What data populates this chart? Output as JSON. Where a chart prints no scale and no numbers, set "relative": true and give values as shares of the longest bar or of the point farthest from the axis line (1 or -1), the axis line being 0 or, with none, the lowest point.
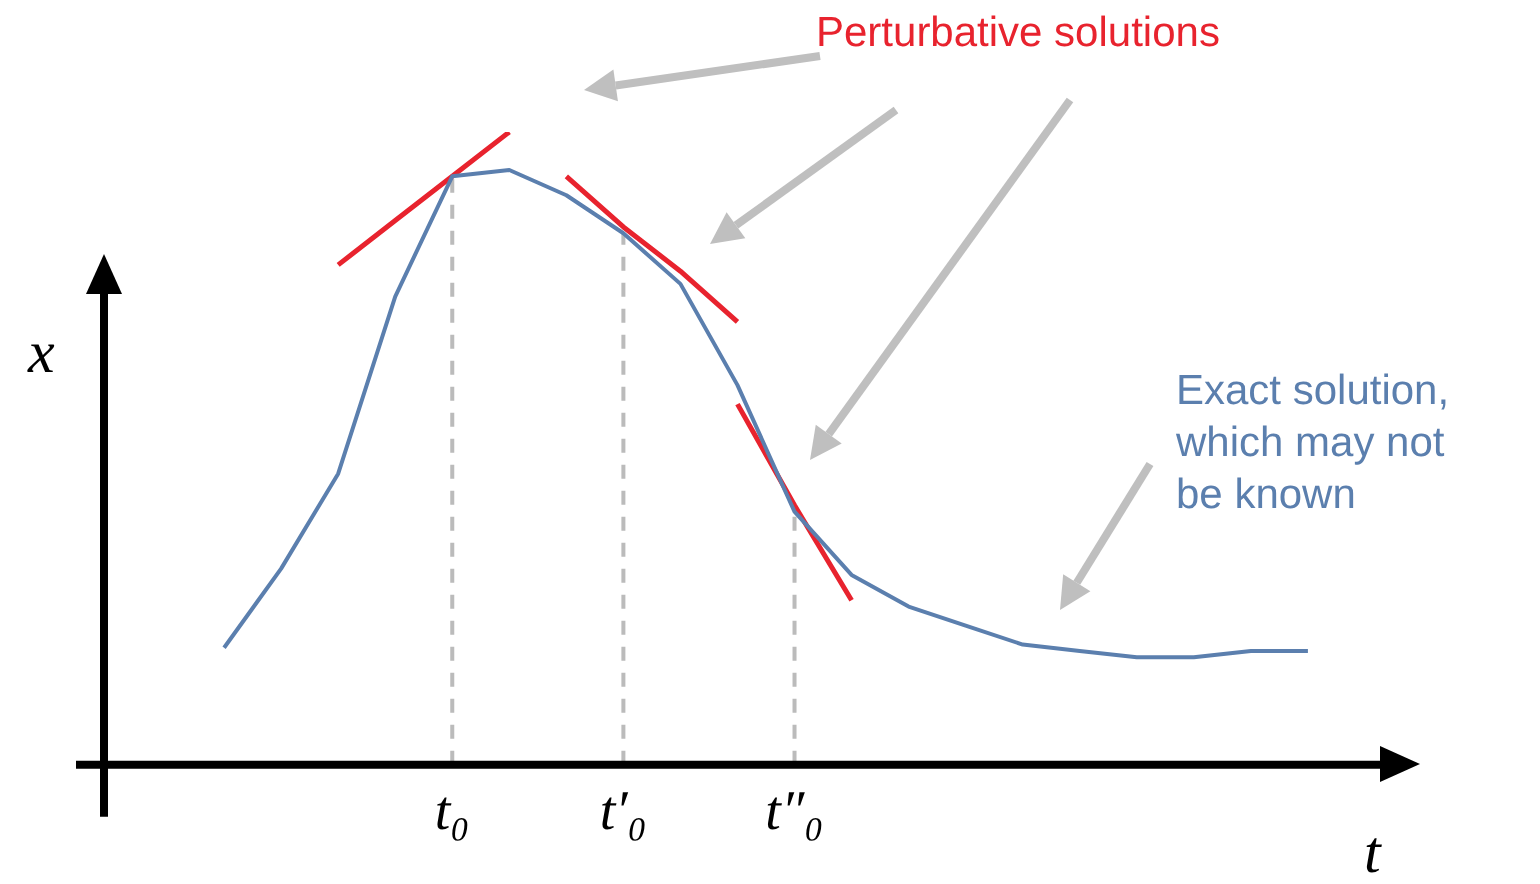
{
  "chart_data": {
    "type": "line",
    "relative": true,
    "xlabel": "t",
    "ylabel": "x",
    "tick_labels": "x",
    "legend": false,
    "grid": false,
    "categories": [
      null,
      null,
      null,
      null,
      null,
      null,
      "t₀",
      null,
      null,
      "t′₀",
      null,
      null,
      "t″₀",
      null,
      null,
      null,
      null,
      null,
      null,
      null,
      null,
      null,
      null,
      null
    ],
    "series": [
      {
        "color": "#5b7fae",
        "values": [
          null,
          null,
          0.185,
          0.31,
          0.46,
          0.74,
          0.93,
          0.94,
          0.9,
          0.84,
          0.76,
          0.6,
          0.4,
          0.3,
          0.25,
          0.22,
          0.19,
          0.18,
          0.17,
          0.17,
          0.18,
          0.18,
          null,
          null
        ]
      },
      {
        "color": "#e8232e",
        "values": [
          null,
          null,
          null,
          null,
          0.79,
          0.86,
          0.93,
          1,
          null,
          null,
          null,
          null,
          null,
          null,
          null,
          null,
          null,
          null,
          null,
          null,
          null,
          null,
          null,
          null
        ]
      },
      {
        "color": "#e8232e",
        "values": [
          null,
          null,
          null,
          null,
          null,
          null,
          null,
          null,
          0.93,
          0.85,
          0.78,
          0.7,
          null,
          null,
          null,
          null,
          null,
          null,
          null,
          null,
          null,
          null,
          null,
          null
        ]
      },
      {
        "color": "#e8232e",
        "values": [
          null,
          null,
          null,
          null,
          null,
          null,
          null,
          null,
          null,
          null,
          null,
          0.57,
          0.41,
          0.26,
          null,
          null,
          null,
          null,
          null,
          null,
          null,
          null,
          null,
          null
        ]
      }
    ],
    "ref_lines": [
      {
        "axis": "x",
        "value": "t₀",
        "color": "#bbbbbb",
        "line_style": "dashed"
      },
      {
        "axis": "x",
        "value": "t′₀",
        "color": "#bbbbbb",
        "line_style": "dashed"
      },
      {
        "axis": "x",
        "value": "t″₀",
        "color": "#bbbbbb",
        "line_style": "dashed"
      }
    ],
    "annotations": [
      "Perturbative solutions",
      "Exact solution, which may not be known"
    ]
  }
}
